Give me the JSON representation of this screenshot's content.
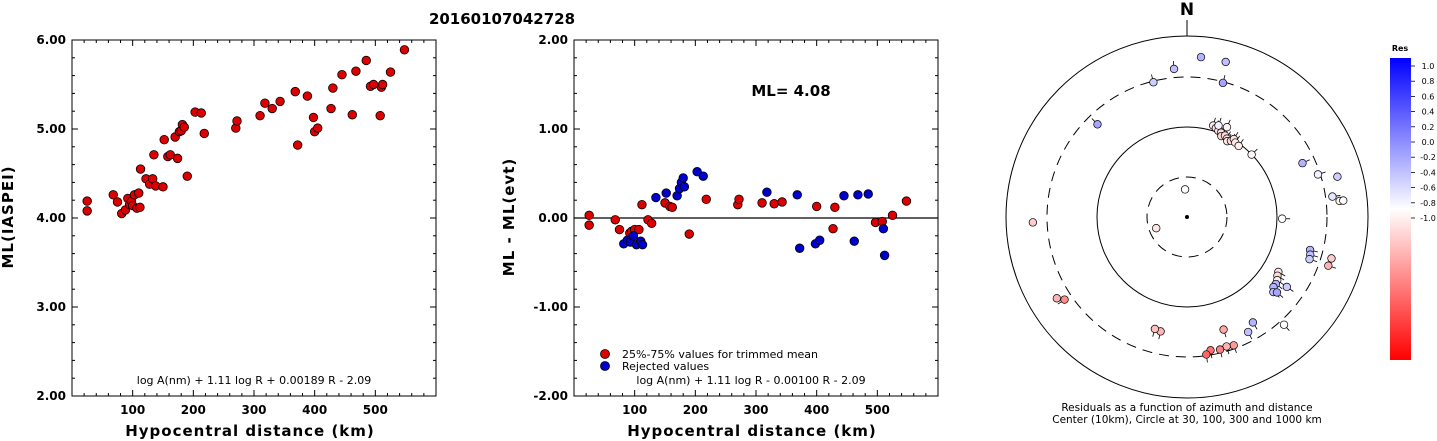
{
  "title": "20160107042728",
  "panel1": {
    "ylabel": "ML(IASPEI)",
    "xlabel": "Hypocentral distance (km)",
    "formula": "log A(nm) + 1.11 log R + 0.00189 R - 2.09"
  },
  "panel2": {
    "ylabel": "ML - ML(evt)",
    "xlabel": "Hypocentral distance (km)",
    "formula": "log A(nm) + 1.11 log R - 0.00100 R - 2.09",
    "ml_text": "ML= 4.08",
    "legend_trimmed": "25%-75% values for trimmed mean",
    "legend_rejected": "Rejected values"
  },
  "panel3": {
    "north": "N",
    "caption1": "Residuals as a function of azimuth and distance",
    "caption2": "Center (10km), Circle at 30, 100, 300 and 1000 km",
    "colorbar_title": "Res"
  },
  "colors": {
    "trimmed": "#dd0000",
    "rejected": "#0000cc"
  },
  "chart_data": [
    {
      "type": "scatter",
      "title": "20160107042728",
      "xlabel": "Hypocentral distance (km)",
      "ylabel": "ML(IASPEI)",
      "xlim": [
        0,
        600
      ],
      "ylim": [
        2.0,
        6.0
      ],
      "xticks": [
        100,
        200,
        300,
        400,
        500
      ],
      "yticks": [
        "2.00",
        "3.00",
        "4.00",
        "5.00",
        "6.00"
      ],
      "points": [
        [
          25,
          4.19
        ],
        [
          25,
          4.08
        ],
        [
          68,
          4.26
        ],
        [
          75,
          4.18
        ],
        [
          82,
          4.05
        ],
        [
          88,
          4.09
        ],
        [
          92,
          4.22
        ],
        [
          95,
          4.15
        ],
        [
          98,
          4.19
        ],
        [
          100,
          4.14
        ],
        [
          103,
          4.26
        ],
        [
          107,
          4.11
        ],
        [
          110,
          4.28
        ],
        [
          112,
          4.12
        ],
        [
          113,
          4.55
        ],
        [
          122,
          4.44
        ],
        [
          128,
          4.38
        ],
        [
          133,
          4.44
        ],
        [
          135,
          4.71
        ],
        [
          138,
          4.36
        ],
        [
          150,
          4.35
        ],
        [
          152,
          4.88
        ],
        [
          158,
          4.69
        ],
        [
          162,
          4.71
        ],
        [
          170,
          4.91
        ],
        [
          174,
          4.67
        ],
        [
          177,
          4.97
        ],
        [
          180,
          4.98
        ],
        [
          182,
          5.05
        ],
        [
          185,
          5.02
        ],
        [
          190,
          4.47
        ],
        [
          203,
          5.19
        ],
        [
          213,
          5.18
        ],
        [
          218,
          4.95
        ],
        [
          270,
          5.01
        ],
        [
          272,
          5.09
        ],
        [
          310,
          5.15
        ],
        [
          318,
          5.29
        ],
        [
          330,
          5.23
        ],
        [
          343,
          5.31
        ],
        [
          368,
          5.42
        ],
        [
          372,
          4.82
        ],
        [
          388,
          5.37
        ],
        [
          398,
          5.13
        ],
        [
          400,
          4.97
        ],
        [
          405,
          5.01
        ],
        [
          427,
          5.23
        ],
        [
          430,
          5.46
        ],
        [
          445,
          5.61
        ],
        [
          462,
          5.16
        ],
        [
          468,
          5.65
        ],
        [
          485,
          5.77
        ],
        [
          492,
          5.48
        ],
        [
          497,
          5.5
        ],
        [
          508,
          5.15
        ],
        [
          510,
          5.47
        ],
        [
          512,
          5.5
        ],
        [
          525,
          5.64
        ],
        [
          548,
          5.89
        ]
      ]
    },
    {
      "type": "scatter",
      "xlabel": "Hypocentral distance (km)",
      "ylabel": "ML - ML(evt)",
      "xlim": [
        0,
        600
      ],
      "ylim": [
        -2.0,
        2.0
      ],
      "xticks": [
        100,
        200,
        300,
        400,
        500
      ],
      "yticks": [
        "-2.00",
        "-1.00",
        "0.00",
        "1.00",
        "2.00"
      ],
      "reference_line": 0.0,
      "series": [
        {
          "name": "25%-75% values for trimmed mean",
          "color": "#dd0000",
          "points": [
            [
              25,
              0.03
            ],
            [
              25,
              -0.08
            ],
            [
              68,
              -0.02
            ],
            [
              75,
              -0.13
            ],
            [
              92,
              -0.17
            ],
            [
              95,
              -0.15
            ],
            [
              100,
              -0.13
            ],
            [
              107,
              -0.13
            ],
            [
              112,
              0.15
            ],
            [
              122,
              -0.02
            ],
            [
              128,
              -0.06
            ],
            [
              150,
              0.17
            ],
            [
              158,
              0.13
            ],
            [
              162,
              0.12
            ],
            [
              190,
              -0.18
            ],
            [
              218,
              0.21
            ],
            [
              270,
              0.15
            ],
            [
              272,
              0.21
            ],
            [
              310,
              0.17
            ],
            [
              330,
              0.16
            ],
            [
              343,
              0.18
            ],
            [
              400,
              0.13
            ],
            [
              427,
              -0.12
            ],
            [
              430,
              0.12
            ],
            [
              497,
              -0.05
            ],
            [
              508,
              -0.04
            ],
            [
              525,
              0.03
            ],
            [
              548,
              0.19
            ]
          ]
        },
        {
          "name": "Rejected values",
          "color": "#0000cc",
          "points": [
            [
              82,
              -0.29
            ],
            [
              88,
              -0.25
            ],
            [
              93,
              -0.27
            ],
            [
              98,
              -0.2
            ],
            [
              103,
              -0.3
            ],
            [
              110,
              -0.26
            ],
            [
              113,
              -0.3
            ],
            [
              135,
              0.23
            ],
            [
              152,
              0.28
            ],
            [
              170,
              0.25
            ],
            [
              174,
              0.33
            ],
            [
              177,
              0.4
            ],
            [
              180,
              0.45
            ],
            [
              182,
              0.35
            ],
            [
              203,
              0.52
            ],
            [
              213,
              0.47
            ],
            [
              318,
              0.29
            ],
            [
              368,
              0.26
            ],
            [
              372,
              -0.34
            ],
            [
              398,
              -0.29
            ],
            [
              405,
              -0.25
            ],
            [
              445,
              0.25
            ],
            [
              462,
              -0.26
            ],
            [
              468,
              0.26
            ],
            [
              485,
              0.27
            ],
            [
              510,
              -0.12
            ],
            [
              512,
              -0.42
            ]
          ]
        }
      ]
    },
    {
      "type": "scatter",
      "subtype": "polar",
      "description": "Residuals as a function of azimuth and distance",
      "radius_scale": "log",
      "rings_km": [
        10,
        30,
        100,
        300,
        1000
      ],
      "colorbar": {
        "title": "Res",
        "range": [
          -1.0,
          1.0
        ],
        "ticks": [
          "1.0",
          "0.8",
          "0.6",
          "0.4",
          "0.2",
          "0.0",
          "-0.2",
          "-0.4",
          "-0.6",
          "-0.8",
          "-1.0"
        ]
      },
      "points": [
        {
          "az": 356,
          "dist_km": 22,
          "res": 0.0
        },
        {
          "az": 250,
          "dist_km": 25,
          "res": -0.1
        },
        {
          "az": 355,
          "dist_km": 460,
          "res": 0.25
        },
        {
          "az": 16,
          "dist_km": 120,
          "res": -0.08
        },
        {
          "az": 18,
          "dist_km": 115,
          "res": -0.12
        },
        {
          "az": 20,
          "dist_km": 110,
          "res": -0.13
        },
        {
          "az": 22,
          "dist_km": 108,
          "res": -0.15
        },
        {
          "az": 23,
          "dist_km": 100,
          "res": -0.17
        },
        {
          "az": 25,
          "dist_km": 105,
          "res": -0.14
        },
        {
          "az": 27,
          "dist_km": 100,
          "res": -0.12
        },
        {
          "az": 28,
          "dist_km": 95,
          "res": -0.1
        },
        {
          "az": 30,
          "dist_km": 100,
          "res": -0.15
        },
        {
          "az": 31,
          "dist_km": 108,
          "res": -0.12
        },
        {
          "az": 33,
          "dist_km": 102,
          "res": -0.1
        },
        {
          "az": 36,
          "dist_km": 100,
          "res": -0.06
        },
        {
          "az": 24,
          "dist_km": 130,
          "res": -0.05
        },
        {
          "az": 19,
          "dist_km": 125,
          "res": 0.05
        },
        {
          "az": 46,
          "dist_km": 105,
          "res": -0.03
        },
        {
          "az": 5,
          "dist_km": 620,
          "res": 0.3
        },
        {
          "az": 14,
          "dist_km": 610,
          "res": 0.25
        },
        {
          "az": 346,
          "dist_km": 360,
          "res": 0.2
        },
        {
          "az": 15,
          "dist_km": 360,
          "res": 0.35
        },
        {
          "az": 316,
          "dist_km": 280,
          "res": 0.35
        },
        {
          "az": 65,
          "dist_km": 270,
          "res": 0.3
        },
        {
          "az": 72,
          "dist_km": 350,
          "res": 0.05
        },
        {
          "az": 75,
          "dist_km": 550,
          "res": 0.2
        },
        {
          "az": 82,
          "dist_km": 440,
          "res": 0.1
        },
        {
          "az": 84,
          "dist_km": 520,
          "res": -0.05
        },
        {
          "az": 84,
          "dist_km": 570,
          "res": 0.02
        },
        {
          "az": 91,
          "dist_km": 120,
          "res": 0.0
        },
        {
          "az": 105,
          "dist_km": 270,
          "res": 0.3
        },
        {
          "az": 107,
          "dist_km": 280,
          "res": 0.25
        },
        {
          "az": 109,
          "dist_km": 285,
          "res": 0.2
        },
        {
          "az": 106,
          "dist_km": 480,
          "res": -0.2
        },
        {
          "az": 109,
          "dist_km": 470,
          "res": -0.3
        },
        {
          "az": 121,
          "dist_km": 160,
          "res": -0.1
        },
        {
          "az": 123,
          "dist_km": 165,
          "res": -0.15
        },
        {
          "az": 125,
          "dist_km": 175,
          "res": -0.05
        },
        {
          "az": 127,
          "dist_km": 180,
          "res": 0.3
        },
        {
          "az": 129,
          "dist_km": 180,
          "res": 0.3
        },
        {
          "az": 131,
          "dist_km": 195,
          "res": 0.25
        },
        {
          "az": 130,
          "dist_km": 210,
          "res": 0.35
        },
        {
          "az": 125,
          "dist_km": 235,
          "res": 0.2
        },
        {
          "az": 138,
          "dist_km": 420,
          "res": 0.0
        },
        {
          "az": 148,
          "dist_km": 250,
          "res": 0.3
        },
        {
          "az": 152,
          "dist_km": 290,
          "res": 0.25
        },
        {
          "az": 162,
          "dist_km": 215,
          "res": -0.35
        },
        {
          "az": 160,
          "dist_km": 340,
          "res": -0.4
        },
        {
          "az": 163,
          "dist_km": 330,
          "res": -0.3
        },
        {
          "az": 166,
          "dist_km": 340,
          "res": -0.5
        },
        {
          "az": 170,
          "dist_km": 330,
          "res": -0.55
        },
        {
          "az": 172,
          "dist_km": 360,
          "res": -0.6
        },
        {
          "az": 193,
          "dist_km": 210,
          "res": -0.3
        },
        {
          "az": 196,
          "dist_km": 205,
          "res": -0.25
        },
        {
          "az": 236,
          "dist_km": 450,
          "res": -0.45
        },
        {
          "az": 238,
          "dist_km": 520,
          "res": -0.3
        },
        {
          "az": 268,
          "dist_km": 530,
          "res": -0.2
        }
      ]
    }
  ]
}
